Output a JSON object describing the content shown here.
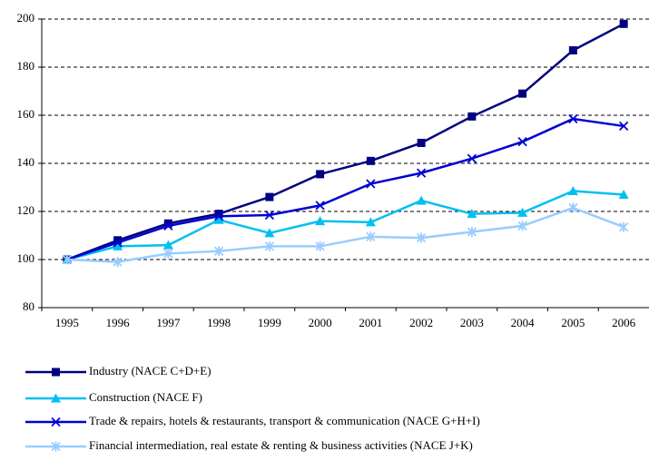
{
  "chart_data": {
    "type": "line",
    "categories": [
      "1995",
      "1996",
      "1997",
      "1998",
      "1999",
      "2000",
      "2001",
      "2002",
      "2003",
      "2004",
      "2005",
      "2006"
    ],
    "series": [
      {
        "name": "Industry (NACE C+D+E)",
        "color": "#000080",
        "marker": "square",
        "values": [
          100,
          108,
          115,
          119,
          126,
          135.5,
          141,
          148.5,
          159.5,
          169,
          187,
          198
        ]
      },
      {
        "name": "Construction (NACE F)",
        "color": "#00c0f0",
        "marker": "triangle",
        "values": [
          100,
          105.5,
          106,
          116.5,
          111,
          116,
          115.5,
          124.5,
          119,
          119.5,
          128.5,
          127
        ]
      },
      {
        "name": "Trade & repairs, hotels & restaurants, transport & communication (NACE G+H+I)",
        "color": "#0000d0",
        "marker": "x",
        "values": [
          100,
          107,
          114,
          118,
          118.5,
          122.5,
          131.5,
          136,
          142,
          149,
          158.5,
          155.5
        ]
      },
      {
        "name": "Financial intermediation, real estate & renting & business activities (NACE J+K)",
        "color": "#99ccff",
        "marker": "star",
        "values": [
          100,
          99,
          102.5,
          103.5,
          105.5,
          105.5,
          109.5,
          109,
          111.5,
          114,
          121.5,
          113.5
        ]
      }
    ],
    "ylim": [
      80,
      200
    ],
    "yticks": [
      80,
      100,
      120,
      140,
      160,
      180,
      200
    ],
    "grid": true,
    "legend": "bottom"
  }
}
